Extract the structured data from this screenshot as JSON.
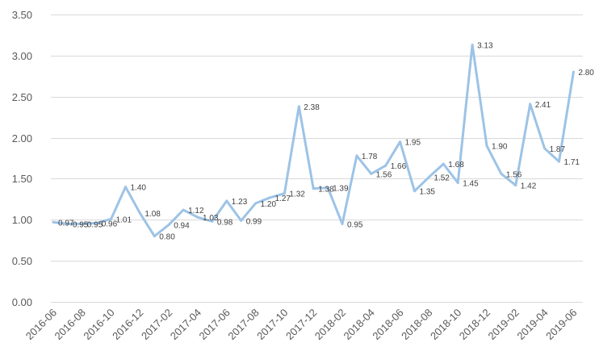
{
  "chart_data": {
    "type": "line",
    "title": "",
    "xlabel": "",
    "ylabel": "",
    "ylim": [
      0,
      3.5
    ],
    "y_ticks": [
      "0.00",
      "0.50",
      "1.00",
      "1.50",
      "2.00",
      "2.50",
      "3.00",
      "3.50"
    ],
    "grid": "horizontal",
    "legend": "none",
    "line_color": "#9dc3e6",
    "x_tick_labels": [
      "2016-06",
      "2016-08",
      "2016-10",
      "2016-12",
      "2017-02",
      "2017-04",
      "2017-06",
      "2017-08",
      "2017-10",
      "2017-12",
      "2018-02",
      "2018-04",
      "2018-06",
      "2018-08",
      "2018-10",
      "2018-12",
      "2019-02",
      "2019-04",
      "2019-06"
    ],
    "categories": [
      "2016-06",
      "2016-07",
      "2016-08",
      "2016-09",
      "2016-10",
      "2016-11",
      "2016-12",
      "2017-01",
      "2017-02",
      "2017-03",
      "2017-04",
      "2017-05",
      "2017-06",
      "2017-07",
      "2017-08",
      "2017-09",
      "2017-10",
      "2017-11",
      "2017-12",
      "2018-01",
      "2018-02",
      "2018-03",
      "2018-04",
      "2018-05",
      "2018-06",
      "2018-07",
      "2018-08",
      "2018-09",
      "2018-10",
      "2018-11",
      "2018-12",
      "2019-01",
      "2019-02",
      "2019-03",
      "2019-04",
      "2019-05",
      "2019-06"
    ],
    "values": [
      0.97,
      0.95,
      0.95,
      0.96,
      1.01,
      1.4,
      1.08,
      0.8,
      0.94,
      1.12,
      1.03,
      0.98,
      1.23,
      0.99,
      1.2,
      1.27,
      1.32,
      2.38,
      1.38,
      1.39,
      0.95,
      1.78,
      1.56,
      1.66,
      1.95,
      1.35,
      1.52,
      1.68,
      1.45,
      3.13,
      1.9,
      1.56,
      1.42,
      2.41,
      1.87,
      1.71,
      2.8
    ],
    "data_labels": [
      "0.97",
      "0.95",
      "0.95",
      "0.96",
      "1.01",
      "1.40",
      "1.08",
      "0.80",
      "0.94",
      "1.12",
      "1.03",
      "0.98",
      "1.23",
      "0.99",
      "1.20",
      "1.27",
      "1.32",
      "2.38",
      "1.38",
      "1.39",
      "0.95",
      "1.78",
      "1.56",
      "1.66",
      "1.95",
      "1.35",
      "1.52",
      "1.68",
      "1.45",
      "3.13",
      "1.90",
      "1.56",
      "1.42",
      "2.41",
      "1.87",
      "1.71",
      "2.80"
    ]
  }
}
